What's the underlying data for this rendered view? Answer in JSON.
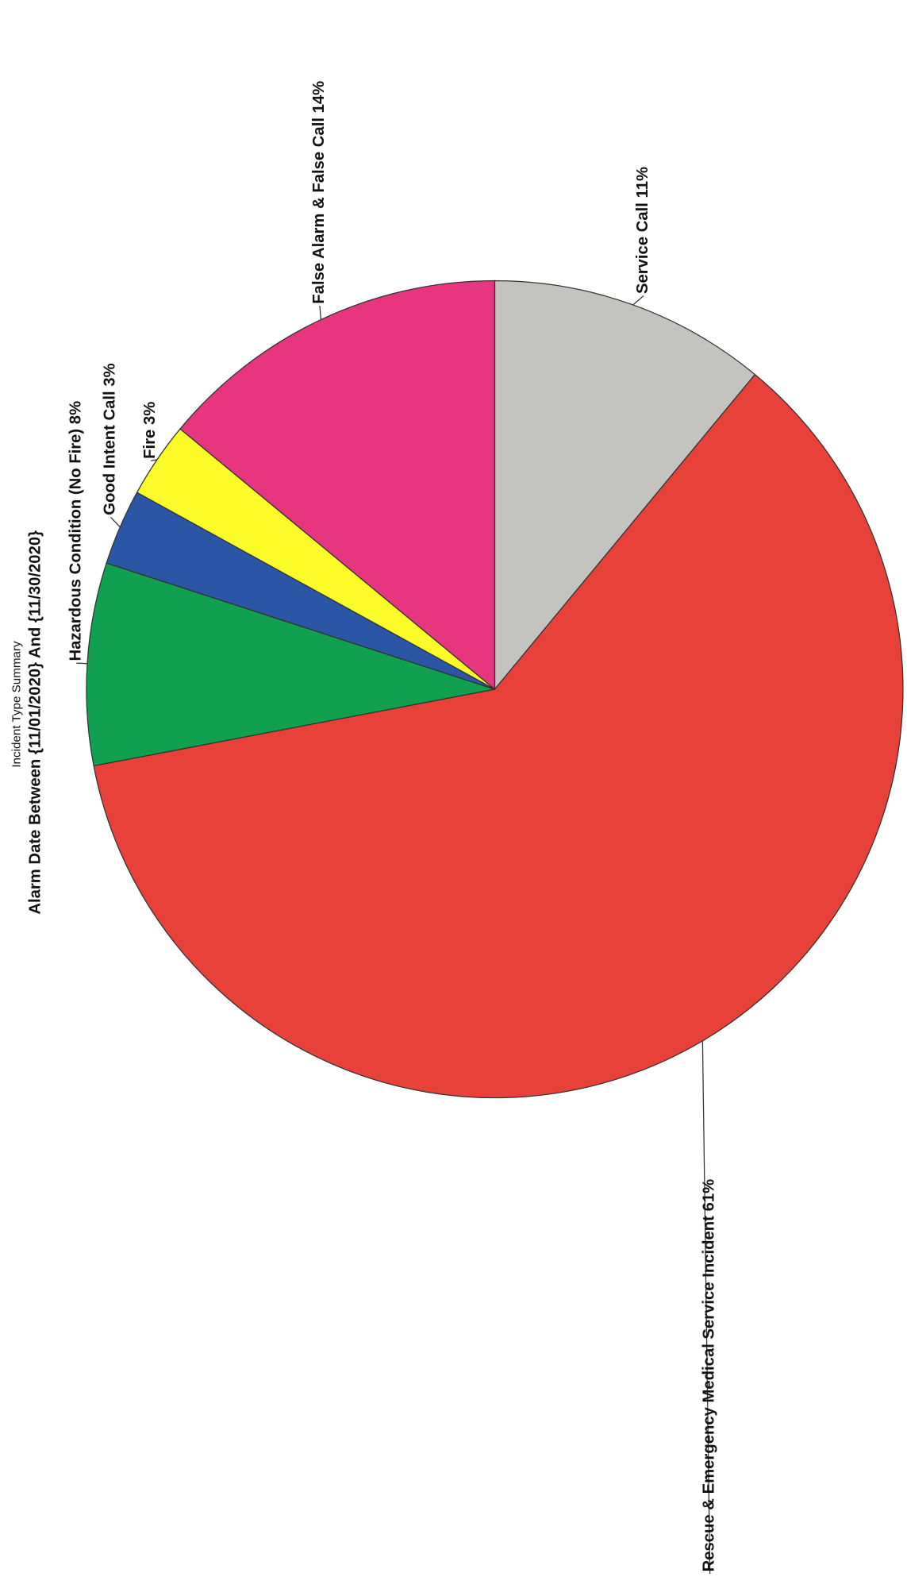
{
  "chart_data": {
    "type": "pie",
    "title": "Incident Type Summary",
    "subtitle": "Alarm Date Between {11/01/2020} And {11/30/2020}",
    "categories": [
      "Service Call",
      "Rescue & Emergency Medical Service Incident",
      "Hazardous Condition (No Fire)",
      "Good Intent Call",
      "Fire",
      "False Alarm & False Call"
    ],
    "values": [
      11,
      61,
      8,
      3,
      3,
      14
    ],
    "value_labels": [
      "11%",
      "61%",
      "8%",
      "3%",
      "3%",
      "14%"
    ],
    "colors": [
      "#c3c3bf",
      "#e8413a",
      "#10a04f",
      "#2a56a5",
      "#fbfb2a",
      "#e8357f"
    ]
  }
}
